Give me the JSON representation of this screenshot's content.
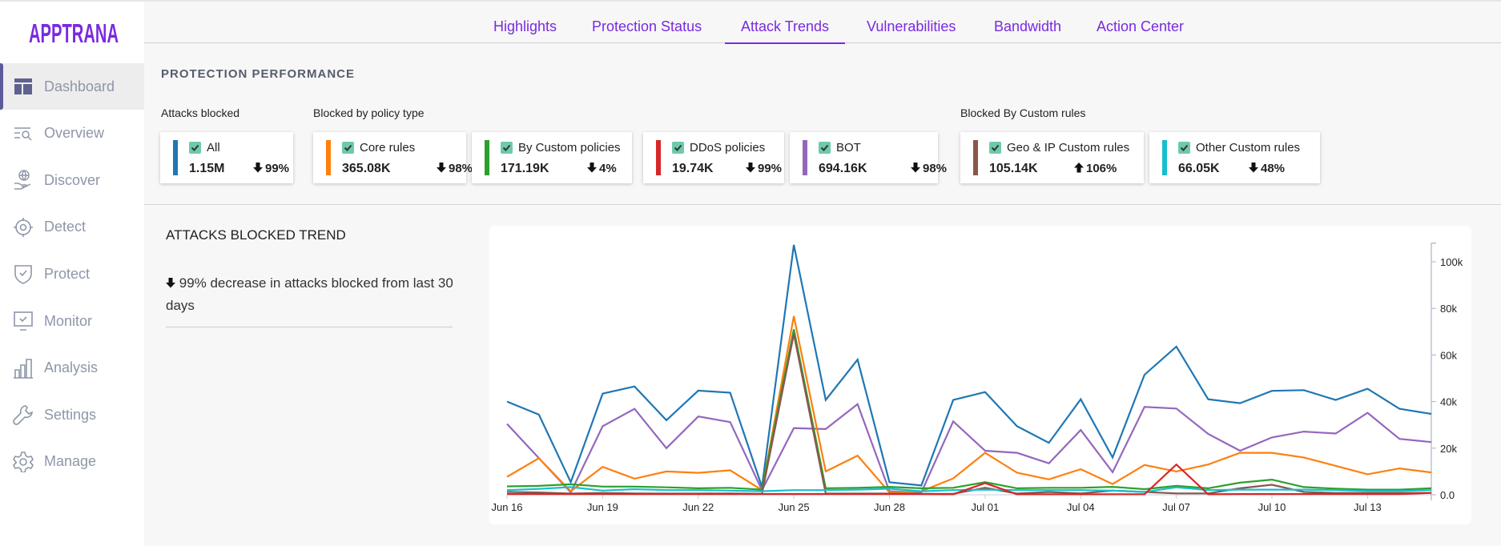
{
  "brand": {
    "logo_text": "APPTRANA",
    "color": "#7a2ae0"
  },
  "sidebar": {
    "items": [
      {
        "label": "Dashboard",
        "icon": "dashboard-icon",
        "active": true
      },
      {
        "label": "Overview",
        "icon": "overview-search-icon"
      },
      {
        "label": "Discover",
        "icon": "globe-hand-icon"
      },
      {
        "label": "Detect",
        "icon": "target-icon"
      },
      {
        "label": "Protect",
        "icon": "shield-check-icon"
      },
      {
        "label": "Monitor",
        "icon": "monitor-check-icon"
      },
      {
        "label": "Analysis",
        "icon": "bar-chart-icon"
      },
      {
        "label": "Settings",
        "icon": "wrench-icon"
      },
      {
        "label": "Manage",
        "icon": "gear-icon"
      }
    ]
  },
  "tabs": [
    {
      "label": "Highlights"
    },
    {
      "label": "Protection Status"
    },
    {
      "label": "Attack Trends",
      "active": true
    },
    {
      "label": "Vulnerabilities"
    },
    {
      "label": "Bandwidth"
    },
    {
      "label": "Action Center"
    }
  ],
  "performance": {
    "title": "PROTECTION PERFORMANCE",
    "group_labels": {
      "attacks": "Attacks blocked",
      "policy": "Blocked by policy type",
      "custom": "Blocked By Custom rules"
    },
    "cards": [
      {
        "label": "All",
        "value": "1.15M",
        "change": "99%",
        "direction": "down",
        "color": "#1f77b4",
        "checked": true
      },
      {
        "label": "Core rules",
        "value": "365.08K",
        "change": "98%",
        "direction": "down",
        "color": "#ff7f0e",
        "checked": true
      },
      {
        "label": "By Custom policies",
        "value": "171.19K",
        "change": "4%",
        "direction": "down",
        "color": "#2ca02c",
        "checked": true
      },
      {
        "label": "DDoS policies",
        "value": "19.74K",
        "change": "99%",
        "direction": "down",
        "color": "#d62728",
        "checked": true
      },
      {
        "label": "BOT",
        "value": "694.16K",
        "change": "98%",
        "direction": "down",
        "color": "#9467bd",
        "checked": true
      },
      {
        "label": "Geo & IP Custom rules",
        "value": "105.14K",
        "change": "106%",
        "direction": "up",
        "color": "#8c564b",
        "checked": true
      },
      {
        "label": "Other Custom rules",
        "value": "66.05K",
        "change": "48%",
        "direction": "down",
        "color": "#17becf",
        "checked": true
      }
    ]
  },
  "trend": {
    "title": "ATTACKS BLOCKED TREND",
    "summary": "99% decrease in attacks blocked from last 30 days",
    "summary_direction": "down"
  },
  "chart_data": {
    "type": "line",
    "x": [
      "Jun 16",
      "Jun 17",
      "Jun 18",
      "Jun 19",
      "Jun 20",
      "Jun 21",
      "Jun 22",
      "Jun 23",
      "Jun 24",
      "Jun 25",
      "Jun 26",
      "Jun 27",
      "Jun 28",
      "Jun 29",
      "Jun 30",
      "Jul 01",
      "Jul 02",
      "Jul 03",
      "Jul 04",
      "Jul 05",
      "Jul 06",
      "Jul 07",
      "Jul 08",
      "Jul 09",
      "Jul 10",
      "Jul 11",
      "Jul 12",
      "Jul 13",
      "Jul 14",
      "Jul 15"
    ],
    "x_tick_labels": [
      "Jun 16",
      "Jun 19",
      "Jun 22",
      "Jun 25",
      "Jun 28",
      "Jul 01",
      "Jul 04",
      "Jul 07",
      "Jul 10",
      "Jul 13"
    ],
    "y_tick_labels": [
      "0.0",
      "20k",
      "40k",
      "60k",
      "80k",
      "100k"
    ],
    "y_ticks": [
      0,
      20000,
      40000,
      60000,
      80000,
      100000
    ],
    "ylim": [
      0,
      108000
    ],
    "y_axis_position": "right",
    "grid": false,
    "series": [
      {
        "color": "#1f77b4",
        "values": [
          40000,
          34400,
          5400,
          43400,
          46500,
          32000,
          44700,
          43800,
          3400,
          107300,
          40700,
          58000,
          5400,
          4000,
          40700,
          44100,
          29400,
          22300,
          41000,
          16000,
          51500,
          63600,
          41000,
          39300,
          44600,
          44900,
          40700,
          45500,
          36900,
          34700
        ]
      },
      {
        "color": "#9467bd",
        "values": [
          30400,
          15700,
          1000,
          29400,
          36900,
          20000,
          33600,
          31200,
          2000,
          28600,
          28200,
          38900,
          1500,
          1000,
          31500,
          18900,
          18000,
          13500,
          27800,
          9700,
          37700,
          37000,
          26100,
          18900,
          24600,
          27100,
          26300,
          35200,
          24000,
          22600
        ]
      },
      {
        "color": "#ff7f0e",
        "values": [
          7700,
          15700,
          1500,
          12000,
          6900,
          10000,
          9400,
          10500,
          2000,
          76700,
          10000,
          16800,
          1000,
          1500,
          7000,
          18000,
          9500,
          6600,
          11000,
          4600,
          12800,
          10000,
          13000,
          18000,
          18000,
          16000,
          12400,
          8800,
          11300,
          9600
        ]
      },
      {
        "color": "#2ca02c",
        "values": [
          3600,
          3800,
          4500,
          3500,
          3500,
          3200,
          2800,
          3000,
          2200,
          71000,
          2800,
          3000,
          3400,
          2800,
          3000,
          5400,
          2800,
          3000,
          3000,
          3400,
          2400,
          3800,
          2800,
          5200,
          6500,
          3300,
          2600,
          2200,
          2200,
          2800
        ]
      },
      {
        "color": "#8c564b",
        "values": [
          1200,
          1000,
          500,
          800,
          600,
          500,
          500,
          600,
          400,
          69000,
          500,
          500,
          500,
          400,
          400,
          3000,
          500,
          1200,
          600,
          1800,
          1200,
          600,
          600,
          2800,
          4300,
          1200,
          800,
          800,
          800,
          800
        ]
      },
      {
        "color": "#17becf",
        "values": [
          2000,
          2500,
          3300,
          1800,
          2400,
          2000,
          2000,
          1800,
          1500,
          2000,
          2000,
          2200,
          2600,
          1500,
          2000,
          2200,
          2000,
          2000,
          2000,
          1800,
          1200,
          3200,
          2000,
          2200,
          2200,
          2200,
          2000,
          1600,
          1600,
          2000
        ]
      },
      {
        "color": "#d62728",
        "values": [
          300,
          300,
          300,
          300,
          300,
          300,
          300,
          300,
          300,
          300,
          300,
          300,
          300,
          300,
          200,
          5000,
          200,
          200,
          200,
          200,
          200,
          13000,
          200,
          300,
          300,
          300,
          300,
          300,
          300,
          800
        ]
      }
    ]
  }
}
